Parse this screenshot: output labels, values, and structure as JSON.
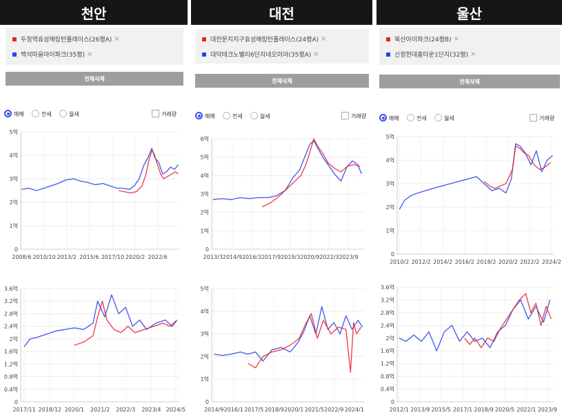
{
  "panels": [
    {
      "city": "천안",
      "legend": [
        {
          "label": "두정역효성해링턴플레이스(26평A)",
          "color": "#e8262c"
        },
        {
          "label": "백석마을아이파크(35평)",
          "color": "#2b44e8"
        }
      ],
      "remove_icon": "×",
      "clear_label": "전체삭제",
      "options": {
        "sale": "매매",
        "jeonse": "전세",
        "wolse": "월세",
        "volume": "거래량",
        "selected": "sale"
      }
    },
    {
      "city": "대전",
      "legend": [
        {
          "label": "대전문지지구효성해링턴플레이스(24평A)",
          "color": "#e8262c"
        },
        {
          "label": "대덕테크노밸리6단지네오미아(35평A)",
          "color": "#2b44e8"
        }
      ],
      "remove_icon": "×",
      "clear_label": "전체삭제",
      "options": {
        "sale": "매매",
        "jeonse": "전세",
        "wolse": "월세",
        "volume": "거래량",
        "selected": "sale"
      }
    },
    {
      "city": "울산",
      "legend": [
        {
          "label": "복산아이파크(24평B)",
          "color": "#e8262c"
        },
        {
          "label": "신정현대홈타운1단지(32평)",
          "color": "#2b44e8"
        }
      ],
      "remove_icon": "×",
      "clear_label": "전체삭제",
      "options": {
        "sale": "매매",
        "jeonse": "전세",
        "wolse": "월세",
        "volume": "거래량",
        "selected": "sale"
      }
    }
  ],
  "chart_data": [
    {
      "panel": "천안",
      "type": "line",
      "grid": true,
      "xlim": [
        2008.4,
        2024.6
      ],
      "ylim": [
        0,
        5
      ],
      "x_ticks": [
        [
          2008.5,
          "2008/6"
        ],
        [
          2010.8,
          "2010/10"
        ],
        [
          2013.1,
          "2013/2"
        ],
        [
          2015.4,
          "2015/6"
        ],
        [
          2017.8,
          "2017/10"
        ],
        [
          2020.1,
          "2020/2"
        ],
        [
          2022.4,
          "2022/6"
        ]
      ],
      "y_ticks": [
        [
          0,
          "0"
        ],
        [
          1,
          "1억"
        ],
        [
          2,
          "2억"
        ],
        [
          3,
          "3억"
        ],
        [
          4,
          "4억"
        ],
        [
          5,
          "5억"
        ]
      ],
      "series": [
        {
          "name": "두정역효성해링턴플레이스(26평A)",
          "color": "#e8262c",
          "x": [
            2018.4,
            2019.0,
            2019.6,
            2020.2,
            2020.8,
            2021.2,
            2021.5,
            2021.8,
            2022.0,
            2022.3,
            2022.7,
            2023.0,
            2023.4,
            2023.8,
            2024.2,
            2024.5
          ],
          "y": [
            2.5,
            2.45,
            2.4,
            2.45,
            2.7,
            3.2,
            3.8,
            4.2,
            4.1,
            3.7,
            3.2,
            3.0,
            3.1,
            3.2,
            3.3,
            3.2
          ]
        },
        {
          "name": "백석마을아이파크(35평)",
          "color": "#2b44e8",
          "x": [
            2008.5,
            2009.2,
            2010.0,
            2010.8,
            2011.5,
            2012.2,
            2013.0,
            2013.8,
            2014.5,
            2015.2,
            2016.0,
            2016.8,
            2017.5,
            2018.2,
            2018.8,
            2019.5,
            2020.0,
            2020.5,
            2021.0,
            2021.4,
            2021.8,
            2022.1,
            2022.5,
            2022.9,
            2023.3,
            2023.7,
            2024.1,
            2024.5
          ],
          "y": [
            2.55,
            2.6,
            2.5,
            2.6,
            2.7,
            2.8,
            2.95,
            3.0,
            2.9,
            2.85,
            2.75,
            2.8,
            2.7,
            2.6,
            2.6,
            2.55,
            2.7,
            3.0,
            3.6,
            3.9,
            4.3,
            3.9,
            3.7,
            3.2,
            3.3,
            3.5,
            3.4,
            3.6
          ]
        }
      ]
    },
    {
      "panel": "천안",
      "type": "line",
      "grid": true,
      "xlim": [
        2017.7,
        2024.5
      ],
      "ylim": [
        0,
        3.6
      ],
      "x_ticks": [
        [
          2017.85,
          "2017/11"
        ],
        [
          2018.95,
          "2018/12"
        ],
        [
          2020.0,
          "2020/1"
        ],
        [
          2021.1,
          "2021/2"
        ],
        [
          2022.2,
          "2022/3"
        ],
        [
          2023.3,
          "2023/4"
        ],
        [
          2024.35,
          "2024/5"
        ]
      ],
      "y_ticks": [
        [
          0,
          "0"
        ],
        [
          0.4,
          "0.4억"
        ],
        [
          0.8,
          "0.8억"
        ],
        [
          1.2,
          "1.2억"
        ],
        [
          1.6,
          "1.6억"
        ],
        [
          2,
          "2억"
        ],
        [
          2.4,
          "2.4억"
        ],
        [
          2.8,
          "2.8억"
        ],
        [
          3.2,
          "3.2억"
        ],
        [
          3.6,
          "3.6억"
        ]
      ],
      "series": [
        {
          "name": "두정역효성해링턴플레이스(26평A)",
          "color": "#e8262c",
          "x": [
            2020.0,
            2020.4,
            2020.8,
            2021.0,
            2021.2,
            2021.4,
            2021.7,
            2022.0,
            2022.3,
            2022.6,
            2023.0,
            2023.4,
            2023.8,
            2024.1,
            2024.4
          ],
          "y": [
            1.8,
            1.9,
            2.1,
            2.7,
            3.2,
            2.6,
            2.3,
            2.2,
            2.4,
            2.2,
            2.3,
            2.4,
            2.5,
            2.4,
            2.6
          ]
        },
        {
          "name": "백석마을아이파크(35평)",
          "color": "#2b44e8",
          "x": [
            2017.85,
            2018.1,
            2018.4,
            2018.8,
            2019.2,
            2019.6,
            2020.0,
            2020.4,
            2020.8,
            2021.0,
            2021.3,
            2021.6,
            2021.9,
            2022.2,
            2022.5,
            2022.8,
            2023.1,
            2023.5,
            2023.9,
            2024.2,
            2024.4
          ],
          "y": [
            1.75,
            2.0,
            2.05,
            2.15,
            2.25,
            2.3,
            2.35,
            2.3,
            2.5,
            3.2,
            2.7,
            3.4,
            2.8,
            3.0,
            2.4,
            2.6,
            2.3,
            2.5,
            2.6,
            2.4,
            2.6
          ]
        }
      ]
    },
    {
      "panel": "대전",
      "type": "line",
      "grid": true,
      "xlim": [
        2013.1,
        2024.9
      ],
      "ylim": [
        0,
        6
      ],
      "x_ticks": [
        [
          2013.2,
          "2013/3"
        ],
        [
          2014.7,
          "2014/9"
        ],
        [
          2016.2,
          "2016/3"
        ],
        [
          2017.7,
          "2017/9"
        ],
        [
          2019.2,
          "2019/3"
        ],
        [
          2020.7,
          "2020/9"
        ],
        [
          2022.2,
          "2022/3"
        ],
        [
          2023.7,
          "2023/9"
        ]
      ],
      "y_ticks": [
        [
          0,
          "0"
        ],
        [
          1,
          "1억"
        ],
        [
          2,
          "2억"
        ],
        [
          3,
          "3억"
        ],
        [
          4,
          "4억"
        ],
        [
          5,
          "5억"
        ],
        [
          6,
          "6억"
        ]
      ],
      "series": [
        {
          "name": "대전문지지구효성해링턴플레이스(24평A)",
          "color": "#e8262c",
          "x": [
            2017.0,
            2017.6,
            2018.2,
            2018.8,
            2019.4,
            2020.0,
            2020.4,
            2020.8,
            2021.0,
            2021.3,
            2021.7,
            2022.1,
            2022.6,
            2023.1,
            2023.6,
            2024.1,
            2024.6
          ],
          "y": [
            2.3,
            2.5,
            2.8,
            3.2,
            3.6,
            4.0,
            4.6,
            5.5,
            6.0,
            5.6,
            5.2,
            4.7,
            4.4,
            4.2,
            4.5,
            4.6,
            4.5
          ]
        },
        {
          "name": "대덕테크노밸리6단지네오미아(35평A)",
          "color": "#2b44e8",
          "x": [
            2013.2,
            2013.9,
            2014.6,
            2015.3,
            2016.0,
            2016.7,
            2017.4,
            2018.1,
            2018.8,
            2019.4,
            2019.9,
            2020.3,
            2020.7,
            2021.0,
            2021.3,
            2021.7,
            2022.1,
            2022.6,
            2023.1,
            2023.6,
            2024.0,
            2024.4,
            2024.7
          ],
          "y": [
            2.7,
            2.75,
            2.7,
            2.8,
            2.75,
            2.8,
            2.8,
            2.9,
            3.2,
            3.9,
            4.3,
            5.0,
            5.7,
            5.9,
            5.5,
            5.0,
            4.6,
            4.1,
            3.7,
            4.5,
            4.8,
            4.6,
            4.1
          ]
        }
      ]
    },
    {
      "panel": "대전",
      "type": "line",
      "grid": true,
      "xlim": [
        2014.6,
        2024.7
      ],
      "ylim": [
        0,
        5
      ],
      "x_ticks": [
        [
          2014.75,
          "2014/9"
        ],
        [
          2016.05,
          "2016/1"
        ],
        [
          2017.4,
          "2017/5"
        ],
        [
          2018.75,
          "2018/9"
        ],
        [
          2020.05,
          "2020/1"
        ],
        [
          2021.4,
          "2021/5"
        ],
        [
          2022.7,
          "2022/9"
        ],
        [
          2024.05,
          "2024/1"
        ]
      ],
      "y_ticks": [
        [
          0,
          "0"
        ],
        [
          1,
          "1억"
        ],
        [
          2,
          "2억"
        ],
        [
          3,
          "3억"
        ],
        [
          4,
          "4억"
        ],
        [
          5,
          "5억"
        ]
      ],
      "series": [
        {
          "name": "대전문지지구효성해링턴플레이스(24평A)",
          "color": "#e8262c",
          "x": [
            2017.0,
            2017.5,
            2018.0,
            2018.6,
            2019.2,
            2019.8,
            2020.4,
            2020.8,
            2021.2,
            2021.6,
            2022.0,
            2022.5,
            2023.0,
            2023.5,
            2023.8,
            2024.0,
            2024.2,
            2024.5
          ],
          "y": [
            1.7,
            1.5,
            2.0,
            2.2,
            2.3,
            2.5,
            2.8,
            3.4,
            3.9,
            2.8,
            3.6,
            3.0,
            3.3,
            3.2,
            1.3,
            3.5,
            3.0,
            3.3
          ]
        },
        {
          "name": "대덕테크노밸리6단지네오미아(35평A)",
          "color": "#2b44e8",
          "x": [
            2014.75,
            2015.3,
            2015.9,
            2016.5,
            2017.0,
            2017.5,
            2018.0,
            2018.6,
            2019.2,
            2019.8,
            2020.3,
            2020.7,
            2021.1,
            2021.5,
            2021.9,
            2022.3,
            2022.7,
            2023.1,
            2023.5,
            2023.9,
            2024.3,
            2024.6
          ],
          "y": [
            2.1,
            2.05,
            2.1,
            2.2,
            2.1,
            2.2,
            1.8,
            2.3,
            2.4,
            2.2,
            2.6,
            3.1,
            3.8,
            3.0,
            4.2,
            3.2,
            3.5,
            3.0,
            3.8,
            3.2,
            3.6,
            3.3
          ]
        }
      ]
    },
    {
      "panel": "울산",
      "type": "line",
      "grid": true,
      "xlim": [
        2009.9,
        2024.3
      ],
      "ylim": [
        0,
        5
      ],
      "x_ticks": [
        [
          2010.1,
          "2010/2"
        ],
        [
          2012.1,
          "2012/2"
        ],
        [
          2014.1,
          "2014/2"
        ],
        [
          2016.1,
          "2016/2"
        ],
        [
          2018.1,
          "2018/2"
        ],
        [
          2020.1,
          "2020/2"
        ],
        [
          2022.1,
          "2022/2"
        ],
        [
          2024.1,
          "2024/2"
        ]
      ],
      "y_ticks": [
        [
          0,
          "0"
        ],
        [
          1,
          "1억"
        ],
        [
          2,
          "2억"
        ],
        [
          3,
          "3억"
        ],
        [
          4,
          "4억"
        ],
        [
          5,
          "5억"
        ]
      ],
      "series": [
        {
          "name": "복산아이파크(24평B)",
          "color": "#e8262c",
          "x": [
            2017.9,
            2018.4,
            2018.9,
            2019.4,
            2019.9,
            2020.2,
            2020.5,
            2020.8,
            2021.2,
            2021.6,
            2022.0,
            2022.5,
            2023.0,
            2023.5,
            2024.0
          ],
          "y": [
            3.1,
            2.9,
            2.8,
            2.9,
            3.0,
            3.3,
            3.6,
            4.6,
            4.5,
            4.3,
            4.2,
            3.8,
            3.6,
            3.7,
            3.9
          ]
        },
        {
          "name": "신정현대홈타운1단지(32평)",
          "color": "#2b44e8",
          "x": [
            2010.1,
            2010.6,
            2011.2,
            2011.8,
            2012.5,
            2013.2,
            2014.0,
            2014.8,
            2015.6,
            2016.4,
            2017.2,
            2017.9,
            2018.6,
            2019.3,
            2019.9,
            2020.4,
            2020.8,
            2021.2,
            2021.7,
            2022.2,
            2022.7,
            2023.2,
            2023.7,
            2024.2
          ],
          "y": [
            1.9,
            2.3,
            2.5,
            2.6,
            2.7,
            2.8,
            2.9,
            3.0,
            3.1,
            3.2,
            3.3,
            3.0,
            2.7,
            2.8,
            2.6,
            3.2,
            4.7,
            4.6,
            4.3,
            3.8,
            4.4,
            3.5,
            4.0,
            4.2
          ]
        }
      ]
    },
    {
      "panel": "울산",
      "type": "line",
      "grid": true,
      "xlim": [
        2011.9,
        2024.2
      ],
      "ylim": [
        0,
        3.6
      ],
      "x_ticks": [
        [
          2012.05,
          "2012/1"
        ],
        [
          2013.7,
          "2013/9"
        ],
        [
          2015.35,
          "2015/5"
        ],
        [
          2017.05,
          "2017/1"
        ],
        [
          2018.7,
          "2018/9"
        ],
        [
          2020.35,
          "2020/5"
        ],
        [
          2022.05,
          "2022/1"
        ],
        [
          2023.7,
          "2023/9"
        ]
      ],
      "y_ticks": [
        [
          0,
          "0"
        ],
        [
          0.4,
          "0.4억"
        ],
        [
          0.8,
          "0.8억"
        ],
        [
          1.2,
          "1.2억"
        ],
        [
          1.6,
          "1.6억"
        ],
        [
          2,
          "2억"
        ],
        [
          2.4,
          "2.4억"
        ],
        [
          2.8,
          "2.8억"
        ],
        [
          3.2,
          "3.2억"
        ],
        [
          3.6,
          "3.6억"
        ]
      ],
      "series": [
        {
          "name": "복산아이파크(24평B)",
          "color": "#e8262c",
          "x": [
            2017.2,
            2017.6,
            2018.0,
            2018.5,
            2019.0,
            2019.5,
            2020.0,
            2020.5,
            2021.0,
            2021.5,
            2022.0,
            2022.4,
            2022.8,
            2023.2,
            2023.6,
            2024.0
          ],
          "y": [
            2.0,
            1.8,
            2.0,
            1.7,
            2.0,
            1.9,
            2.3,
            2.6,
            2.9,
            3.2,
            3.4,
            2.8,
            3.1,
            2.4,
            3.0,
            2.6
          ]
        },
        {
          "name": "신정현대홈타운1단지(32평)",
          "color": "#2b44e8",
          "x": [
            2012.05,
            2012.6,
            2013.2,
            2013.8,
            2014.4,
            2015.0,
            2015.6,
            2016.2,
            2016.8,
            2017.4,
            2018.0,
            2018.6,
            2019.2,
            2019.8,
            2020.4,
            2021.0,
            2021.6,
            2022.2,
            2022.8,
            2023.4,
            2023.9
          ],
          "y": [
            2.0,
            1.9,
            2.1,
            1.9,
            2.2,
            1.6,
            2.2,
            2.4,
            1.9,
            2.2,
            1.9,
            2.0,
            1.7,
            2.2,
            2.4,
            2.9,
            3.2,
            2.6,
            3.0,
            2.5,
            3.2
          ]
        }
      ]
    }
  ]
}
